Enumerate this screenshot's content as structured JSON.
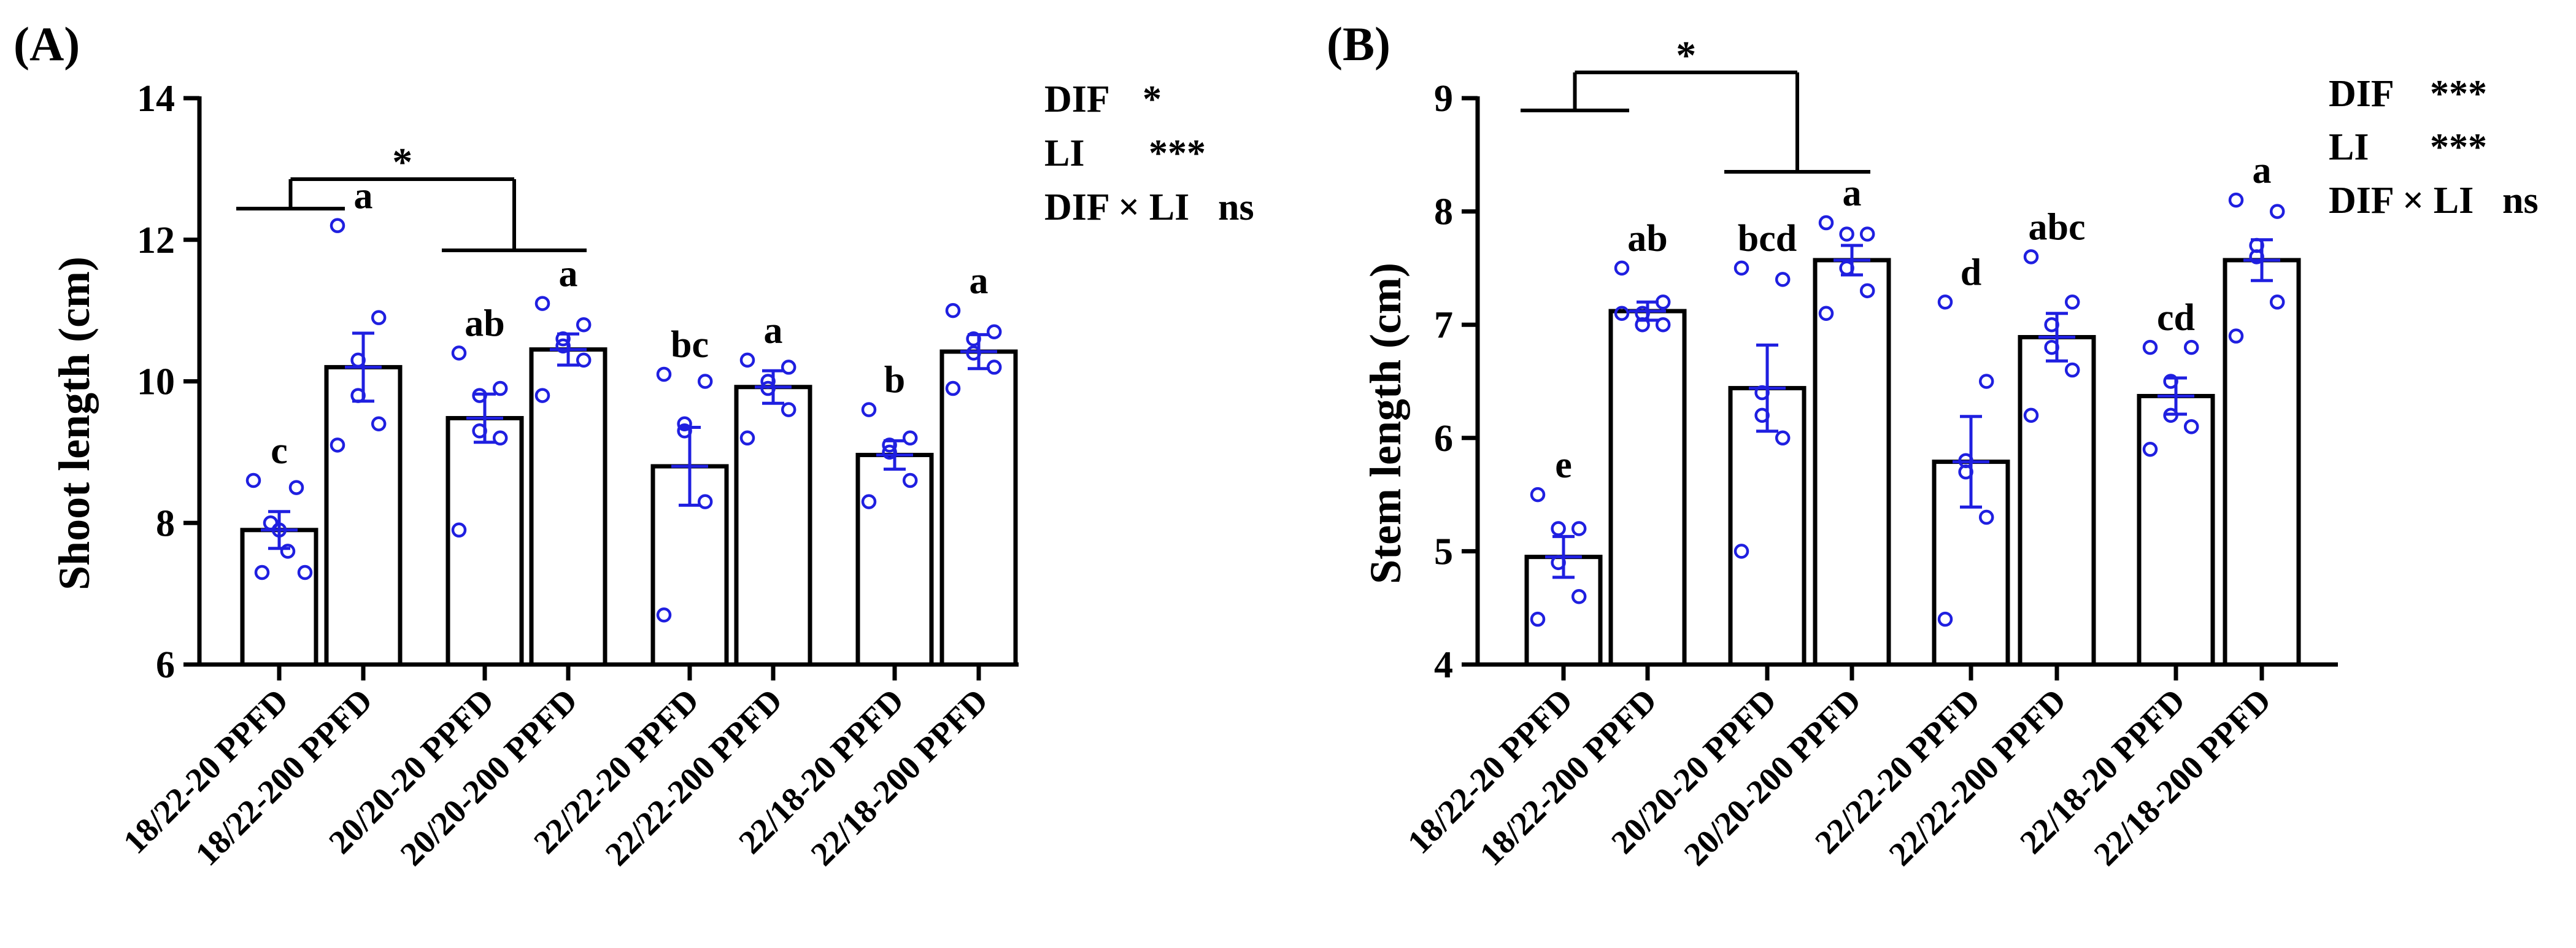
{
  "chart_data": [
    {
      "type": "bar",
      "panel_label": "(A)",
      "ylabel": "Shoot length (cm)",
      "ylim": [
        6,
        14
      ],
      "yticks": [
        6,
        8,
        10,
        12,
        14
      ],
      "categories": [
        "18/22-20 PPFD",
        "18/22-200 PPFD",
        "20/20-20 PPFD",
        "20/20-200 PPFD",
        "22/22-20 PPFD",
        "22/22-200 PPFD",
        "22/18-20 PPFD",
        "22/18-200 PPFD"
      ],
      "values": [
        7.9,
        10.2,
        9.48,
        10.45,
        8.8,
        9.92,
        8.96,
        10.42
      ],
      "sem": [
        0.26,
        0.48,
        0.34,
        0.22,
        0.55,
        0.23,
        0.2,
        0.24
      ],
      "letters": [
        "c",
        "a",
        "ab",
        "a",
        "bc",
        "a",
        "b",
        "a"
      ],
      "points": [
        [
          8.6,
          8.5,
          8.0,
          7.9,
          7.6,
          7.3,
          7.3
        ],
        [
          12.2,
          10.9,
          10.3,
          9.8,
          9.4,
          9.1
        ],
        [
          10.4,
          9.9,
          9.8,
          9.3,
          9.2,
          7.9
        ],
        [
          11.1,
          10.8,
          10.6,
          10.5,
          10.3,
          9.8
        ],
        [
          10.1,
          10.0,
          9.4,
          9.3,
          8.3,
          6.7
        ],
        [
          10.3,
          10.2,
          10.0,
          9.9,
          9.6,
          9.2
        ],
        [
          9.6,
          9.2,
          9.1,
          9.0,
          8.6,
          8.3
        ],
        [
          11.0,
          10.7,
          10.6,
          10.4,
          10.2,
          9.9
        ]
      ],
      "significance": {
        "symbol": "*"
      },
      "stats": [
        {
          "label": "DIF",
          "value": "*"
        },
        {
          "label": "LI",
          "value": "***"
        },
        {
          "label": "DIF × LI",
          "value": "ns"
        }
      ]
    },
    {
      "type": "bar",
      "panel_label": "(B)",
      "ylabel": "Stem length (cm)",
      "ylim": [
        4,
        9
      ],
      "yticks": [
        4,
        5,
        6,
        7,
        8,
        9
      ],
      "categories": [
        "18/22-20 PPFD",
        "18/22-200 PPFD",
        "20/20-20 PPFD",
        "20/20-200 PPFD",
        "22/22-20 PPFD",
        "22/22-200 PPFD",
        "22/18-20 PPFD",
        "22/18-200 PPFD"
      ],
      "values": [
        4.95,
        7.12,
        6.44,
        7.57,
        5.79,
        6.89,
        6.37,
        7.57
      ],
      "sem": [
        0.18,
        0.08,
        0.38,
        0.13,
        0.4,
        0.21,
        0.16,
        0.18
      ],
      "letters": [
        "e",
        "ab",
        "bcd",
        "a",
        "d",
        "abc",
        "cd",
        "a"
      ],
      "points": [
        [
          5.5,
          5.2,
          5.2,
          4.9,
          4.6,
          4.4
        ],
        [
          7.5,
          7.2,
          7.1,
          7.0,
          7.0,
          7.1
        ],
        [
          7.5,
          7.4,
          6.4,
          6.2,
          6.0,
          5.0
        ],
        [
          7.9,
          7.8,
          7.8,
          7.5,
          7.3,
          7.1
        ],
        [
          7.2,
          6.5,
          5.8,
          5.7,
          5.3,
          4.4
        ],
        [
          7.6,
          7.2,
          7.0,
          6.8,
          6.6,
          6.2
        ],
        [
          6.8,
          6.8,
          6.5,
          6.2,
          6.1,
          5.9
        ],
        [
          8.1,
          8.0,
          7.7,
          7.6,
          7.2,
          6.9
        ]
      ],
      "significance": {
        "symbol": "*"
      },
      "stats": [
        {
          "label": "DIF",
          "value": "***"
        },
        {
          "label": "LI",
          "value": "***"
        },
        {
          "label": "DIF × LI",
          "value": "ns"
        }
      ]
    }
  ],
  "colors": {
    "points": "#1f1fe0",
    "bars": "#ffffff",
    "axis": "#000000"
  }
}
